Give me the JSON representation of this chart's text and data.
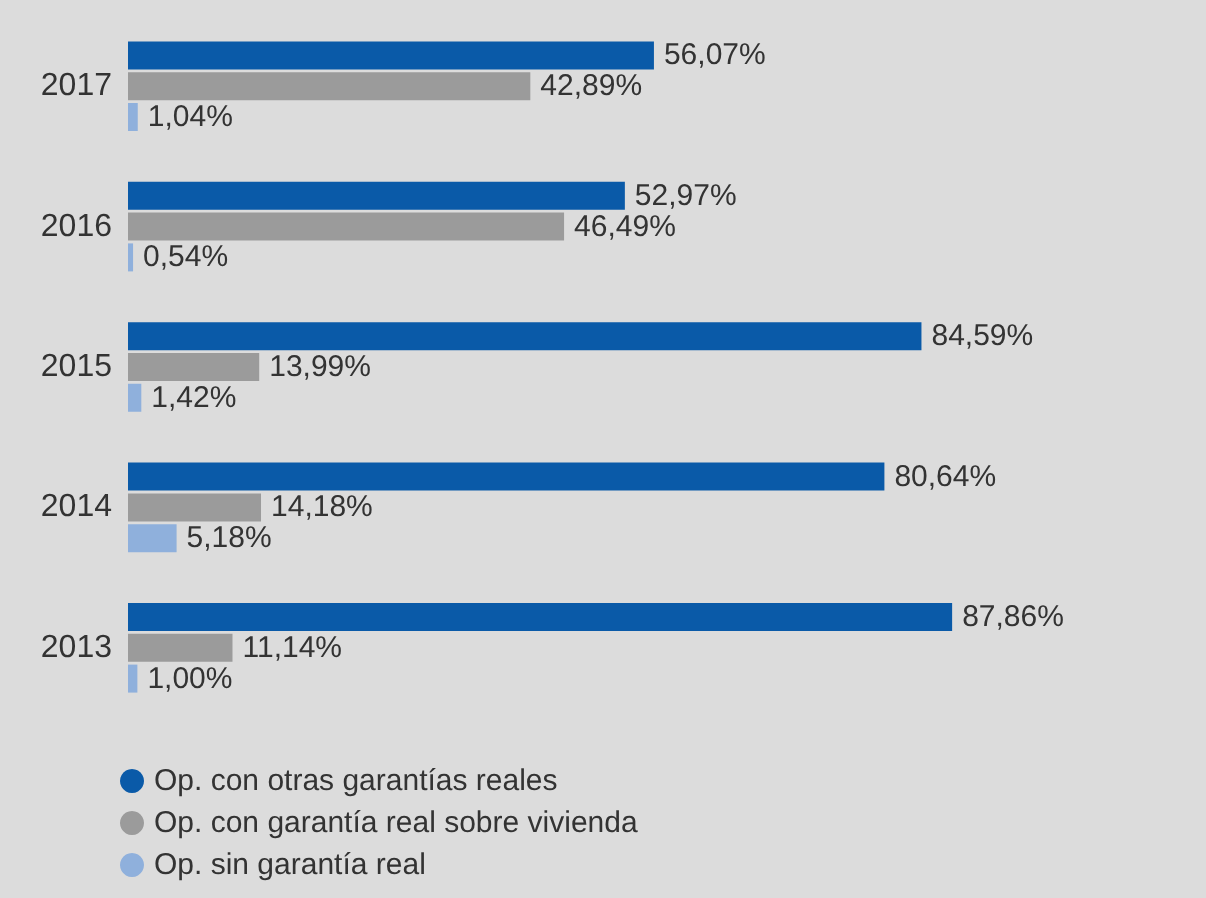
{
  "chart_data": {
    "type": "bar",
    "orientation": "horizontal",
    "categories": [
      "2017",
      "2016",
      "2015",
      "2014",
      "2013"
    ],
    "series": [
      {
        "name": "Op. con otras garantías reales",
        "color": "#0a5aa8",
        "values": [
          56.07,
          52.97,
          84.59,
          80.64,
          87.86
        ],
        "value_labels": [
          "56,07%",
          "52,97%",
          "84,59%",
          "80,64%",
          "87,86%"
        ]
      },
      {
        "name": "Op. con garantía real sobre vivienda",
        "color": "#9b9b9b",
        "values": [
          42.89,
          46.49,
          13.99,
          14.18,
          11.14
        ],
        "value_labels": [
          "42,89%",
          "46,49%",
          "13,99%",
          "14,18%",
          "11,14%"
        ]
      },
      {
        "name": "Op. sin garantía real",
        "color": "#8fb0dc",
        "values": [
          1.04,
          0.54,
          1.42,
          5.18,
          1.0
        ],
        "value_labels": [
          "1,04%",
          "0,54%",
          "1,42%",
          "5,18%",
          "1,00%"
        ]
      }
    ],
    "legend": "bottom left"
  }
}
